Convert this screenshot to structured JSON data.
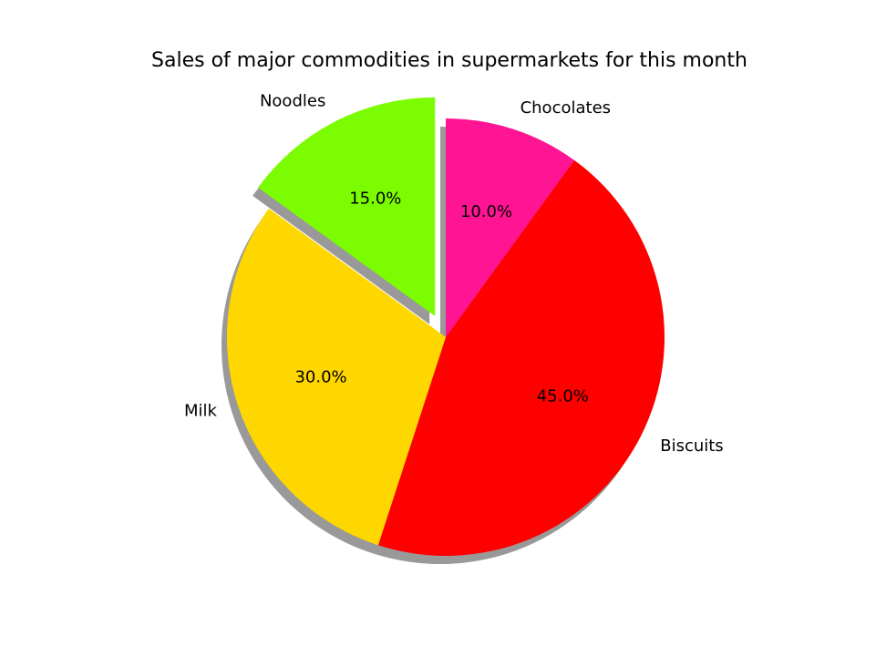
{
  "chart_data": {
    "type": "pie",
    "title": "Sales of major commodities in supermarkets for this month",
    "categories": [
      "Chocolates",
      "Biscuits",
      "Milk",
      "Noodles"
    ],
    "values": [
      10.0,
      45.0,
      30.0,
      15.0
    ],
    "percent_labels": [
      "10.0%",
      "45.0%",
      "30.0%",
      "15.0%"
    ],
    "colors": [
      "#ff1493",
      "#ff0000",
      "#ffd700",
      "#7cfc00"
    ],
    "exploded": [
      false,
      false,
      false,
      true
    ],
    "shadow": true,
    "start_angle_deg": 90,
    "direction": "clockwise",
    "legend": "none"
  }
}
